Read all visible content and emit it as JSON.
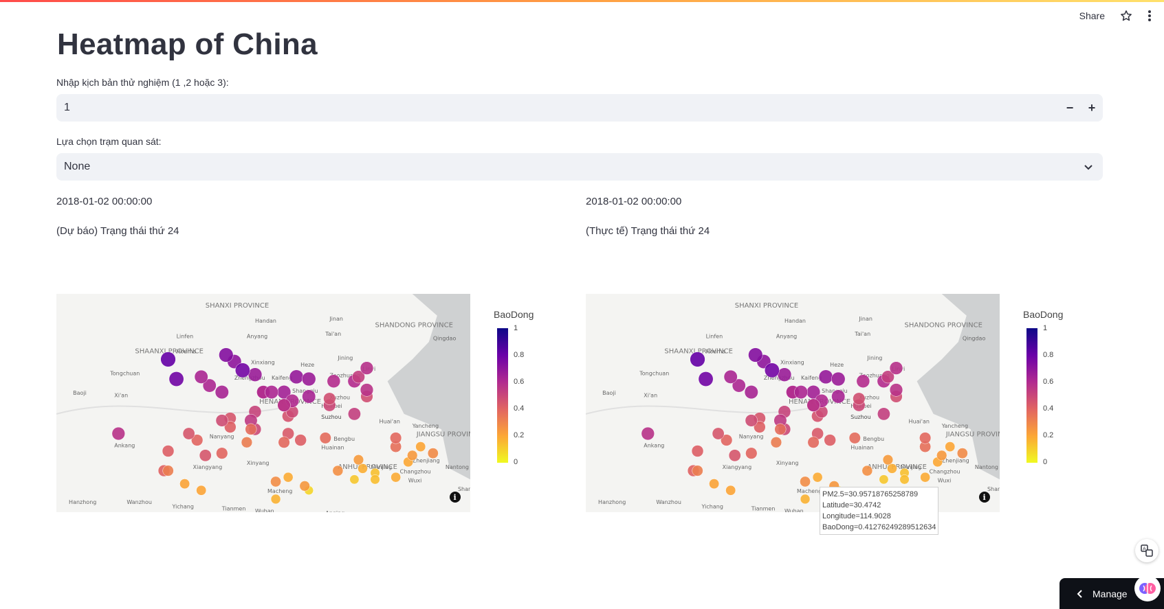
{
  "page": {
    "title": "Heatmap of China"
  },
  "header": {
    "share_label": "Share",
    "star_icon": "star-icon",
    "menu_icon": "kebab-menu-icon"
  },
  "scenario": {
    "label": "Nhập kịch bản thử nghiệm (1 ,2 hoặc 3):",
    "value": "1",
    "minus": "−",
    "plus": "+"
  },
  "station": {
    "label": "Lựa chọn trạm quan sát:",
    "value": "None"
  },
  "left": {
    "datetime": "2018-01-02 00:00:00",
    "caption": "(Dự báo) Trạng thái thứ 24"
  },
  "right": {
    "datetime": "2018-01-02 00:00:00",
    "caption": "(Thực tế) Trạng thái thứ 24"
  },
  "colorbar": {
    "title": "BaoDong",
    "ticks": [
      "1",
      "0.8",
      "0.6",
      "0.4",
      "0.2",
      "0"
    ]
  },
  "map_labels": [
    "SHANXI PROVINCE",
    "SHAANXI PROVINCE",
    "HENAN PROVINCE",
    "SHANDONG PROVINCE",
    "JIANGSU PROVINCE",
    "ANHUI PROVINCE",
    "Handan",
    "Linfen",
    "Houma",
    "Anyang",
    "Jinan",
    "Tai'an",
    "Qingdao",
    "Xinxiang",
    "Heze",
    "Jining",
    "Zhengzhou",
    "Kaifeng",
    "Zaozhuang",
    "Tongchuan",
    "Baoji",
    "Xi'an",
    "Shangqiu",
    "Linyi",
    "Xuzhou",
    "Huaibei",
    "Suzhou",
    "Huai'an",
    "Yancheng",
    "Nanyang",
    "Ankang",
    "Bengbu",
    "Huainan",
    "Xiangyang",
    "Xinyang",
    "Nanjing",
    "Zhenjiang",
    "Nantong",
    "Changzhou",
    "Wuxi",
    "Suzhou",
    "Shanghai",
    "Macheng",
    "Hanzhong",
    "Wanzhou",
    "Yichang",
    "Tianmen",
    "Wuhan",
    "Anqing"
  ],
  "tooltip": {
    "lines": [
      "PM2.5=30.95718765258789",
      "Latitude=30.4742",
      "Longitude=114.9028",
      "BaoDong=0.41276249289512634"
    ]
  },
  "manage": {
    "label": "Manage"
  },
  "colors": {
    "accent": "#ff4b4b",
    "input_bg": "#f0f2f6",
    "sea": "#c8cacc",
    "land": "#f4f4f2"
  },
  "maps": {
    "left_points": [
      [
        0.61,
        0.9
      ],
      [
        0.68,
        0.81
      ],
      [
        0.66,
        0.51
      ],
      [
        0.66,
        0.48
      ],
      [
        0.15,
        0.64
      ],
      [
        0.27,
        0.72
      ],
      [
        0.34,
        0.67
      ],
      [
        0.36,
        0.74
      ],
      [
        0.56,
        0.64
      ],
      [
        0.56,
        0.56
      ],
      [
        0.46,
        0.68
      ],
      [
        0.48,
        0.62
      ],
      [
        0.57,
        0.54
      ],
      [
        0.42,
        0.57
      ],
      [
        0.55,
        0.45
      ],
      [
        0.72,
        0.4
      ],
      [
        0.75,
        0.47
      ],
      [
        0.72,
        0.55
      ],
      [
        0.75,
        0.44
      ],
      [
        0.85,
        0.77
      ],
      [
        0.73,
        0.38
      ],
      [
        0.58,
        0.38
      ],
      [
        0.48,
        0.54
      ],
      [
        0.75,
        0.34
      ],
      [
        0.47,
        0.58
      ],
      [
        0.55,
        0.51
      ],
      [
        0.37,
        0.42
      ],
      [
        0.29,
        0.39
      ],
      [
        0.27,
        0.3
      ],
      [
        0.32,
        0.64
      ],
      [
        0.35,
        0.38
      ],
      [
        0.61,
        0.39
      ],
      [
        0.48,
        0.37
      ],
      [
        0.42,
        0.61
      ],
      [
        0.57,
        0.49
      ],
      [
        0.4,
        0.45
      ],
      [
        0.43,
        0.31
      ],
      [
        0.26,
        0.81
      ],
      [
        0.4,
        0.73
      ],
      [
        0.35,
        0.9
      ],
      [
        0.5,
        0.45
      ],
      [
        0.59,
        0.67
      ],
      [
        0.86,
        0.74
      ],
      [
        0.77,
        0.82
      ],
      [
        0.53,
        0.86
      ],
      [
        0.5,
        0.45
      ],
      [
        0.74,
        0.8
      ],
      [
        0.82,
        0.7
      ],
      [
        0.82,
        0.84
      ],
      [
        0.77,
        0.85
      ],
      [
        0.88,
        0.7
      ],
      [
        0.91,
        0.73
      ],
      [
        0.67,
        0.4
      ],
      [
        0.72,
        0.85
      ],
      [
        0.82,
        0.66
      ],
      [
        0.55,
        0.68
      ],
      [
        0.41,
        0.28
      ],
      [
        0.45,
        0.35
      ],
      [
        0.53,
        0.94
      ],
      [
        0.4,
        0.58
      ],
      [
        0.47,
        0.62
      ],
      [
        0.55,
        0.51
      ],
      [
        0.27,
        0.81
      ],
      [
        0.31,
        0.87
      ],
      [
        0.6,
        0.88
      ],
      [
        0.65,
        0.66
      ],
      [
        0.56,
        0.84
      ],
      [
        0.61,
        0.47
      ],
      [
        0.52,
        0.45
      ],
      [
        0.73,
        0.76
      ]
    ],
    "right_points": [
      [
        0.61,
        0.9
      ],
      [
        0.68,
        0.81
      ],
      [
        0.66,
        0.51
      ],
      [
        0.66,
        0.48
      ],
      [
        0.15,
        0.64
      ],
      [
        0.27,
        0.72
      ],
      [
        0.34,
        0.67
      ],
      [
        0.36,
        0.74
      ],
      [
        0.56,
        0.64
      ],
      [
        0.56,
        0.56
      ],
      [
        0.46,
        0.68
      ],
      [
        0.48,
        0.62
      ],
      [
        0.57,
        0.54
      ],
      [
        0.42,
        0.57
      ],
      [
        0.55,
        0.45
      ],
      [
        0.72,
        0.4
      ],
      [
        0.75,
        0.47
      ],
      [
        0.72,
        0.55
      ],
      [
        0.75,
        0.44
      ],
      [
        0.85,
        0.77
      ],
      [
        0.73,
        0.38
      ],
      [
        0.58,
        0.38
      ],
      [
        0.48,
        0.54
      ],
      [
        0.75,
        0.34
      ],
      [
        0.47,
        0.58
      ],
      [
        0.55,
        0.51
      ],
      [
        0.37,
        0.42
      ],
      [
        0.29,
        0.39
      ],
      [
        0.27,
        0.3
      ],
      [
        0.32,
        0.64
      ],
      [
        0.35,
        0.38
      ],
      [
        0.61,
        0.39
      ],
      [
        0.48,
        0.37
      ],
      [
        0.42,
        0.61
      ],
      [
        0.57,
        0.49
      ],
      [
        0.4,
        0.45
      ],
      [
        0.43,
        0.31
      ],
      [
        0.26,
        0.81
      ],
      [
        0.4,
        0.73
      ],
      [
        0.35,
        0.9
      ],
      [
        0.5,
        0.45
      ],
      [
        0.59,
        0.67
      ],
      [
        0.86,
        0.74
      ],
      [
        0.77,
        0.82
      ],
      [
        0.53,
        0.86
      ],
      [
        0.5,
        0.45
      ],
      [
        0.74,
        0.8
      ],
      [
        0.82,
        0.7
      ],
      [
        0.82,
        0.84
      ],
      [
        0.77,
        0.85
      ],
      [
        0.88,
        0.7
      ],
      [
        0.91,
        0.73
      ],
      [
        0.67,
        0.4
      ],
      [
        0.72,
        0.85
      ],
      [
        0.82,
        0.66
      ],
      [
        0.55,
        0.68
      ],
      [
        0.41,
        0.28
      ],
      [
        0.45,
        0.35
      ],
      [
        0.53,
        0.94
      ],
      [
        0.4,
        0.58
      ],
      [
        0.47,
        0.62
      ],
      [
        0.55,
        0.51
      ],
      [
        0.27,
        0.81
      ],
      [
        0.31,
        0.87
      ],
      [
        0.6,
        0.88
      ],
      [
        0.65,
        0.66
      ],
      [
        0.56,
        0.84
      ],
      [
        0.61,
        0.47
      ],
      [
        0.52,
        0.45
      ],
      [
        0.73,
        0.76
      ]
    ]
  }
}
